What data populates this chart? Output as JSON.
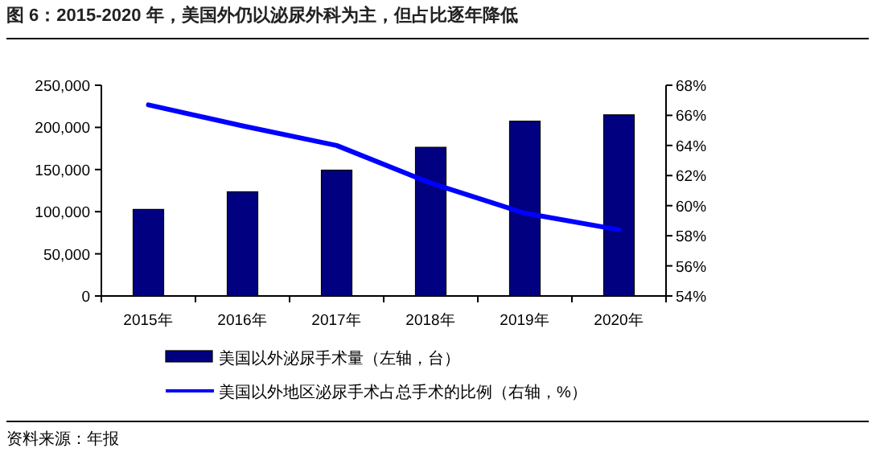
{
  "chart_data": {
    "type": "bar",
    "title": "图 6：2015-2020 年，美国外仍以泌尿外科为主，但占比逐年降低",
    "categories": [
      "2015年",
      "2016年",
      "2017年",
      "2018年",
      "2019年",
      "2020年"
    ],
    "series": [
      {
        "name": "美国以外泌尿手术量（左轴，台）",
        "color": "#000080",
        "values": [
          102700,
          123600,
          149300,
          176400,
          207400,
          214900
        ]
      },
      {
        "name": "美国以外地区泌尿手术占总手术的比例（右轴，%）",
        "type": "line",
        "axis": "y2",
        "color": "#0000ff",
        "values": [
          66.7,
          65.3,
          64.0,
          61.5,
          59.5,
          58.4
        ]
      }
    ],
    "ylim": [
      0,
      250000
    ],
    "yticks": [
      {
        "value": 0,
        "label": "0"
      },
      {
        "value": 50000,
        "label": "50,000"
      },
      {
        "value": 100000,
        "label": "100,000"
      },
      {
        "value": 150000,
        "label": "150,000"
      },
      {
        "value": 200000,
        "label": "200,000"
      },
      {
        "value": 250000,
        "label": "250,000"
      }
    ],
    "y2lim": [
      54,
      68
    ],
    "y2ticks": [
      {
        "value": 54,
        "label": "54%"
      },
      {
        "value": 56,
        "label": "56%"
      },
      {
        "value": 58,
        "label": "58%"
      },
      {
        "value": 60,
        "label": "60%"
      },
      {
        "value": 62,
        "label": "62%"
      },
      {
        "value": 64,
        "label": "64%"
      },
      {
        "value": 66,
        "label": "66%"
      },
      {
        "value": 68,
        "label": "68%"
      }
    ],
    "legend": "bottom",
    "grid": false,
    "annotations": [
      "资料来源：年报"
    ]
  }
}
